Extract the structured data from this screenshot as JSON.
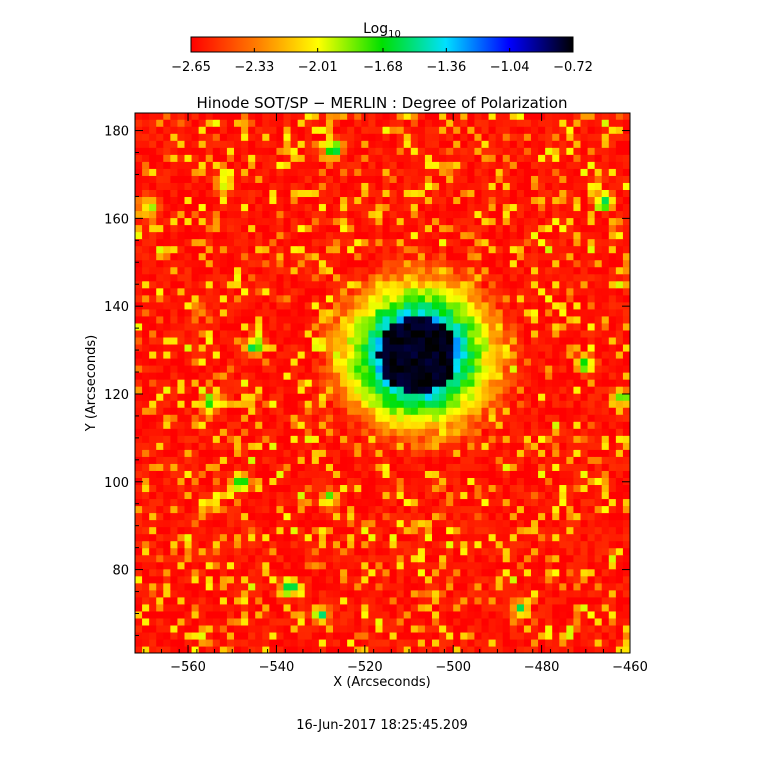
{
  "chart_data": {
    "type": "heatmap",
    "title": "Hinode SOT/SP − MERLIN : Degree of Polarization",
    "xlabel": "X (Arcseconds)",
    "ylabel": "Y (Arcseconds)",
    "xlim": [
      -572,
      -460
    ],
    "ylim": [
      61,
      184
    ],
    "xticks": [
      -560,
      -540,
      -520,
      -500,
      -480,
      -460
    ],
    "yticks": [
      80,
      100,
      120,
      140,
      160,
      180
    ],
    "xtick_labels": [
      "−560",
      "−540",
      "−520",
      "−500",
      "−480",
      "−460"
    ],
    "ytick_labels": [
      "80",
      "100",
      "120",
      "140",
      "160",
      "180"
    ],
    "colorbar": {
      "label_base": "Log",
      "label_sub": "10",
      "ticks": [
        -2.65,
        -2.33,
        -2.01,
        -1.68,
        -1.36,
        -1.04,
        -0.72
      ],
      "tick_labels": [
        "−2.65",
        "−2.33",
        "−2.01",
        "−1.68",
        "−1.36",
        "−1.04",
        "−0.72"
      ],
      "range": [
        -2.65,
        -0.72
      ],
      "colors": [
        "#ff0000",
        "#ff7800",
        "#ffff00",
        "#00e000",
        "#00e0ff",
        "#0000ff",
        "#000000"
      ]
    },
    "features": {
      "umbra_center": [
        -508,
        129
      ],
      "umbra_radius_arcsec": 11,
      "umbra_value": -0.75,
      "background_value": -2.6,
      "plage_patches": [
        {
          "x": -527,
          "y": 176,
          "v": -1.4
        },
        {
          "x": -552,
          "y": 168,
          "v": -1.6
        },
        {
          "x": -569,
          "y": 163,
          "v": -1.5
        },
        {
          "x": -466,
          "y": 164,
          "v": -1.2
        },
        {
          "x": -545,
          "y": 131,
          "v": -1.3
        },
        {
          "x": -555,
          "y": 118,
          "v": -1.4
        },
        {
          "x": -548,
          "y": 100,
          "v": -1.4
        },
        {
          "x": -537,
          "y": 76,
          "v": -1.3
        },
        {
          "x": -530,
          "y": 70,
          "v": -1.5
        },
        {
          "x": -470,
          "y": 127,
          "v": -1.5
        },
        {
          "x": -462,
          "y": 119,
          "v": -1.5
        },
        {
          "x": -485,
          "y": 71,
          "v": -1.6
        },
        {
          "x": -528,
          "y": 96,
          "v": -1.6
        }
      ]
    },
    "footer": "16-Jun-2017 18:25:45.209"
  }
}
